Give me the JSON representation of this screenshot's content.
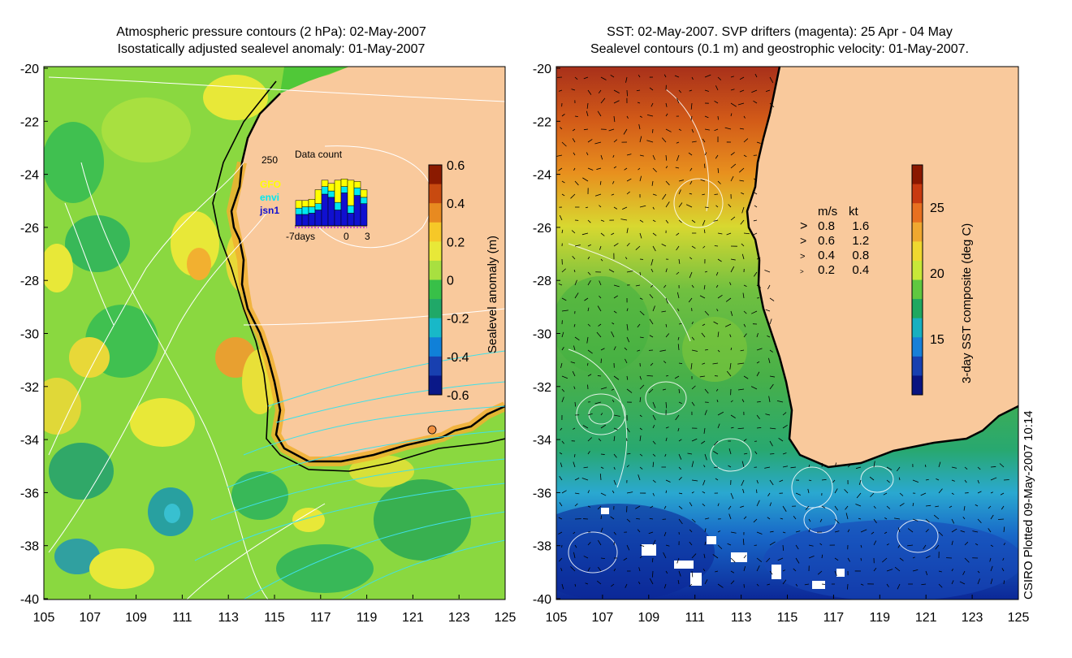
{
  "left_panel": {
    "title_line1": "Atmospheric pressure contours (2 hPa): 02-May-2007",
    "title_line2": "Isostatically adjusted sealevel anomaly: 01-May-2007",
    "y_ticks": [
      "-20",
      "-22",
      "-24",
      "-26",
      "-28",
      "-30",
      "-32",
      "-34",
      "-36",
      "-38",
      "-40"
    ],
    "x_ticks": [
      "105",
      "107",
      "109",
      "111",
      "113",
      "115",
      "117",
      "119",
      "121",
      "123",
      "125"
    ],
    "colorbar": {
      "label": "Sealevel anomaly (m)",
      "ticks": [
        "0.6",
        "0.4",
        "0.2",
        "0",
        "-0.2",
        "-0.4",
        "-0.6"
      ],
      "colors": [
        "#8b1a00",
        "#c84a10",
        "#e88a20",
        "#f6c828",
        "#e8e838",
        "#a8e040",
        "#38c048",
        "#20a868",
        "#18b8c8",
        "#1080d8",
        "#1840b0",
        "#0a1888"
      ]
    },
    "data_count": {
      "title": "Data count",
      "max_label": "250",
      "x_labels": [
        "-7days",
        "0",
        "3"
      ],
      "legend": [
        {
          "name": "GFO",
          "color": "#ffff00"
        },
        {
          "name": "envi",
          "color": "#00e8f0"
        },
        {
          "name": "jsn1",
          "color": "#1010d0"
        }
      ],
      "bars": [
        {
          "gfo": 0.12,
          "envi": 0.1,
          "jsn1": 0.18
        },
        {
          "gfo": 0.1,
          "envi": 0.12,
          "jsn1": 0.18
        },
        {
          "gfo": 0.12,
          "envi": 0.1,
          "jsn1": 0.2
        },
        {
          "gfo": 0.22,
          "envi": 0.1,
          "jsn1": 0.25
        },
        {
          "gfo": 0.1,
          "envi": 0.12,
          "jsn1": 0.5
        },
        {
          "gfo": 0.12,
          "envi": 0.1,
          "jsn1": 0.45
        },
        {
          "gfo": 0.35,
          "envi": 0.12,
          "jsn1": 0.25
        },
        {
          "gfo": 0.12,
          "envi": 0.1,
          "jsn1": 0.52
        },
        {
          "gfo": 0.4,
          "envi": 0.12,
          "jsn1": 0.2
        },
        {
          "gfo": 0.1,
          "envi": 0.12,
          "jsn1": 0.48
        },
        {
          "gfo": 0.12,
          "envi": 0.1,
          "jsn1": 0.35
        }
      ]
    }
  },
  "right_panel": {
    "title_line1": "SST: 02-May-2007. SVP drifters (magenta): 25 Apr - 04 May",
    "title_line2": "Sealevel contours (0.1 m) and geostrophic velocity: 01-May-2007.",
    "y_ticks": [
      "-20",
      "-22",
      "-24",
      "-26",
      "-28",
      "-30",
      "-32",
      "-34",
      "-36",
      "-38",
      "-40"
    ],
    "x_ticks": [
      "105",
      "107",
      "109",
      "111",
      "113",
      "115",
      "117",
      "119",
      "121",
      "123",
      "125"
    ],
    "colorbar": {
      "label": "3-day SST composite (deg C)",
      "ticks": [
        "25",
        "20",
        "15"
      ],
      "colors": [
        "#8b1800",
        "#c83a10",
        "#e87020",
        "#f0a830",
        "#f0d830",
        "#c8e838",
        "#60c840",
        "#20a860",
        "#18b0c0",
        "#1880d8",
        "#1840b0",
        "#0a1480"
      ]
    },
    "velocity_legend": {
      "header_ms": "m/s",
      "header_kt": "kt",
      "rows": [
        {
          "ms": "0.8",
          "kt": "1.6"
        },
        {
          "ms": "0.6",
          "kt": "1.2"
        },
        {
          "ms": "0.4",
          "kt": "0.8"
        },
        {
          "ms": "0.2",
          "kt": "0.4"
        }
      ]
    }
  },
  "footer": "CSIRO Plotted 09-May-2007 10:14",
  "colors": {
    "land": "#f9c99c",
    "coast": "#000000",
    "pressure_contour": "#ffffff",
    "cyan_contour": "#40e0e8"
  }
}
